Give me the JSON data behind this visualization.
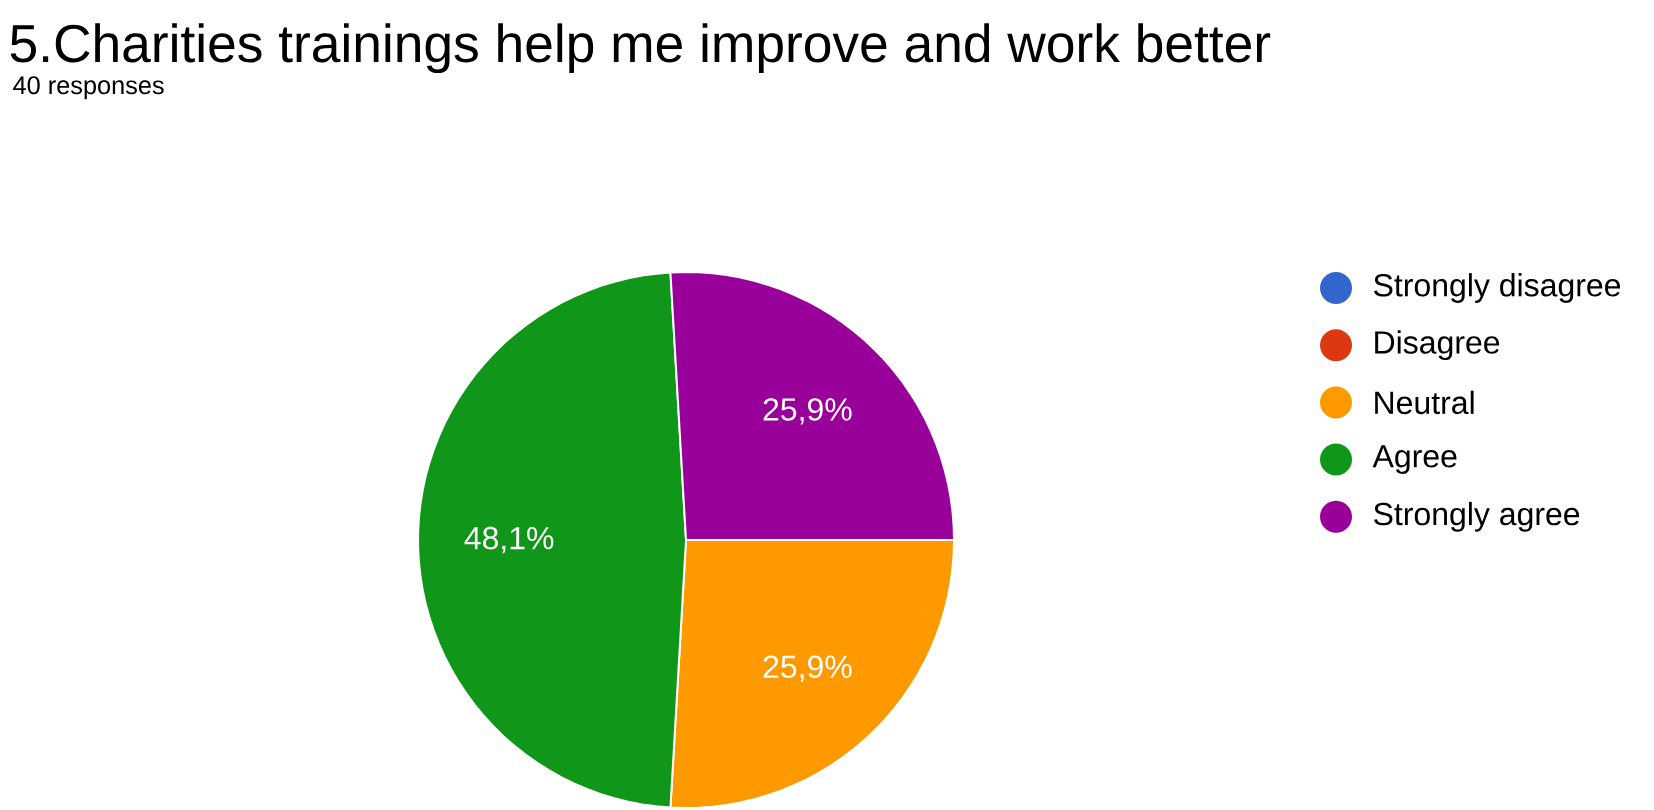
{
  "chart_data": {
    "type": "pie",
    "title": "5.Charities trainings help me improve and work better",
    "subtitle": "40 responses",
    "categories": [
      "Strongly disagree",
      "Disagree",
      "Neutral",
      "Agree",
      "Strongly agree"
    ],
    "values": [
      0,
      0,
      25.9,
      48.1,
      25.9
    ],
    "colors": [
      "#3366cc",
      "#dc3912",
      "#ff9900",
      "#109618",
      "#990099"
    ],
    "value_labels": [
      null,
      null,
      "25,9%",
      "48,1%",
      "25,9%"
    ],
    "legend": "right"
  }
}
